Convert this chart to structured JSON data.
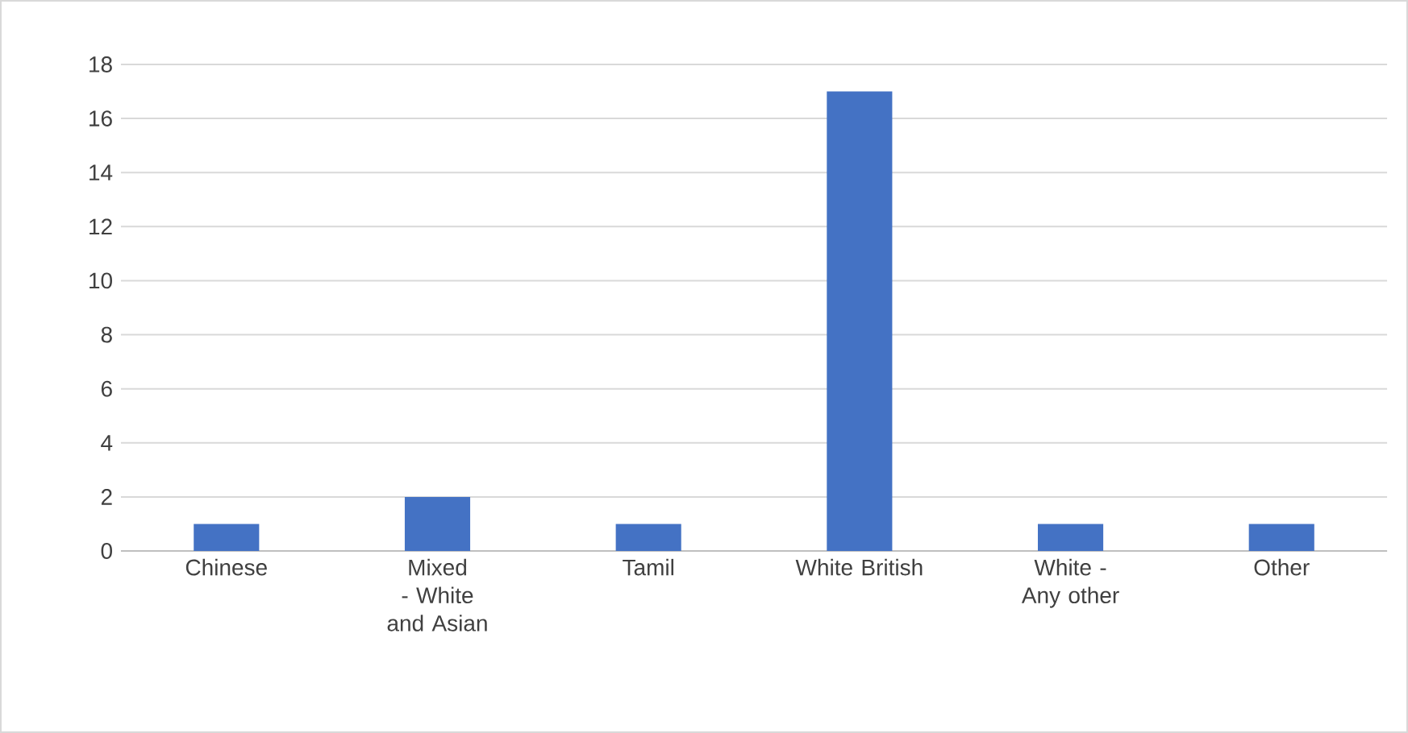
{
  "chart_data": {
    "type": "bar",
    "categories": [
      "Chinese",
      "Mixed - White and Asian",
      "Tamil",
      "White British",
      "White - Any other",
      "Other"
    ],
    "values": [
      1,
      2,
      1,
      17,
      1,
      1
    ],
    "color": "#4472c4",
    "ylim": [
      0,
      18
    ],
    "yticks": [
      0,
      2,
      4,
      6,
      8,
      10,
      12,
      14,
      16,
      18
    ],
    "grid": "y"
  }
}
